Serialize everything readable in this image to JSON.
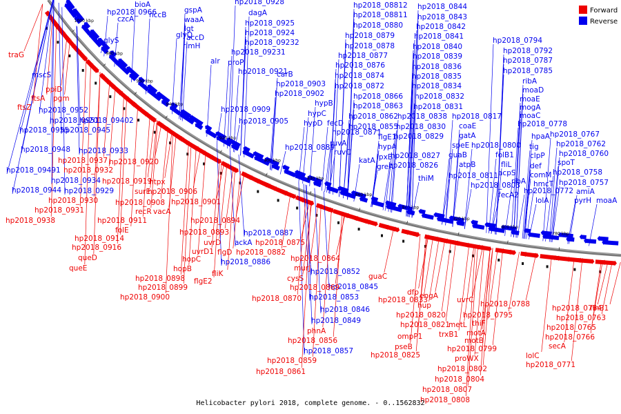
{
  "caption": "Helicobacter pylori 2018, complete genome. - 0..1562832",
  "legend": {
    "forward_label": "Forward",
    "reverse_label": "Reverse",
    "forward_color": "#ee0000",
    "reverse_color": "#0000ee"
  },
  "ticks": [
    "1000 kbp",
    "980 kbp",
    "960 kbp",
    "940 kbp",
    "920 kbp",
    "900 kbp",
    "880 kbp",
    "860 kbp",
    "840 kbp",
    "820 kbp",
    "800 kbp",
    "780 kbp"
  ],
  "genes_reverse": [
    "bioA",
    "hp2018_0966",
    "nccB",
    "czcA",
    "glyS",
    "gspA",
    "waaA",
    "lgt",
    "glyQ",
    "accD",
    "rlmH",
    "alr",
    "proP",
    "hp2018_0928",
    "dagA",
    "hp2018_0925",
    "hp2018_0924",
    "hp2018_09232",
    "hp2018_09231",
    "hp2018_0921",
    "mscS",
    "hp2018_0952",
    "hp2018_0951",
    "hp2018_0955",
    "hp2018_0945",
    "hp2018_09402",
    "hp2018_0948",
    "hp2018_0933",
    "hp2018_09491",
    "hp2018_0934",
    "hp2018_0944",
    "hp2018_0929",
    "carB",
    "hp2018_0903",
    "hp2018_0902",
    "hp2018_0909",
    "hp2018_0905",
    "hp2018_0889",
    "hp2018_0887",
    "ackA",
    "hp2018_0886",
    "hp2018_0852",
    "hp2018_0853",
    "hp2018_0845",
    "hp2018_0846",
    "hp2018_0849",
    "hp2018_0857",
    "hp2018_08812",
    "hp2018_08811",
    "hp2018_0880",
    "hp2018_0879",
    "hp2018_0878",
    "hp2018_0877",
    "hp2018_0876",
    "hp2018_0874",
    "hp2018_0872",
    "hypB",
    "hypC",
    "hypD",
    "fecD",
    "hp2018_0871",
    "hp2018_0866",
    "hp2018_0863",
    "hp2018_0862",
    "hp2018_0855",
    "ruvA",
    "ruvC",
    "katA",
    "flgE1",
    "hypA",
    "lpxB",
    "greA",
    "hp2018_0844",
    "hp2018_0843",
    "hp2018_0842",
    "hp2018_0841",
    "hp2018_0840",
    "hp2018_0839",
    "hp2018_0836",
    "hp2018_0835",
    "hp2018_0834",
    "hp2018_0832",
    "hp2018_0831",
    "hp2018_0838",
    "hp2018_0830",
    "hp2018_0829",
    "hp2018_0827",
    "hp2018_0826",
    "thiM",
    "hp2018_0817",
    "coaE",
    "gatA",
    "speE",
    "guaB",
    "atpB",
    "hp2018_0811",
    "hp2018_0800",
    "hp2018_0803",
    "hp2018_0794",
    "hp2018_0792",
    "hp2018_0787",
    "hp2018_0785",
    "ribA",
    "moaD",
    "moaE",
    "mogA",
    "moaC",
    "hp2018_0778",
    "folB1",
    "fliL",
    "acpS",
    "fecA2",
    "hpaA",
    "tig",
    "clpP",
    "def",
    "comM",
    "hmcT",
    "ribA",
    "hp2018_0772",
    "lolA",
    "hp2018_0767",
    "hp2018_0762",
    "hp2018_0760",
    "spoT",
    "hp2018_0758",
    "hp2018_0757",
    "amiA",
    "pyrH",
    "moaA"
  ],
  "genes_forward": [
    "traG",
    "ppiD",
    "pgm",
    "ftsA",
    "ftsZ",
    "hp2018_0937",
    "hp2018_0932",
    "hp2018_0920",
    "hp2018_0919",
    "htpx",
    "surE",
    "hp2018_0906",
    "hp2018_0930",
    "hp2018_0908",
    "hp2018_0901",
    "recR",
    "vacA",
    "hp2018_0931",
    "hp2018_0938",
    "hp2018_0911",
    "folE",
    "hp2018_0914",
    "hp2018_0916",
    "queD",
    "queE",
    "hp2018_0894",
    "hp2018_0893",
    "uvrD",
    "uvrD1",
    "hp2018_0875",
    "flgD",
    "hp2018_0882",
    "hopC",
    "hopB",
    "fliK",
    "flgE2",
    "hp2018_0898",
    "hp2018_0899",
    "hp2018_0900",
    "hp2018_0864",
    "murJ",
    "cysS",
    "hp2018_0869",
    "hp2018_0870",
    "guaC",
    "hp2018_0833",
    "phnA",
    "hp2018_0856",
    "hp2018_0859",
    "hp2018_0861",
    "dfp",
    "engA",
    "hup",
    "hp2018_0820",
    "hp2018_0821",
    "ompP1",
    "pseB",
    "hp2018_0825",
    "uvrC",
    "hp2018_0788",
    "hp2018_0795",
    "thiF",
    "metL",
    "trxB1",
    "motA",
    "motB",
    "hp2018_0799",
    "proWX",
    "hp2018_0802",
    "hp2018_0804",
    "hp2018_0807",
    "hp2018_0808",
    "hp2018_0764",
    "flhB1",
    "hp2018_0763",
    "hp2018_0765",
    "hp2018_0766",
    "secA",
    "lolC",
    "hp2018_0771"
  ]
}
